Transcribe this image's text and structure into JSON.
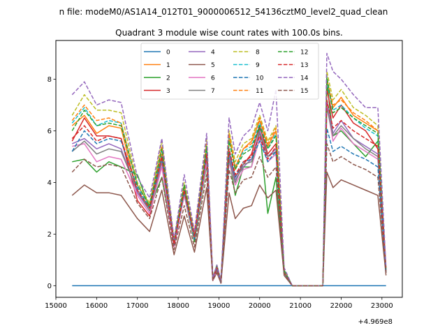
{
  "chart_data": {
    "type": "line",
    "suptitle": "n file: modeM0/AS1A14_012T01_9000006512_54136cztM0_level2_quad_clean",
    "title": "Quadrant 3 module wise count rates with 100.0s bins.",
    "xlabel": "",
    "ylabel": "",
    "x_offset_text": "+4.969e8",
    "xlim": [
      15000,
      23500
    ],
    "ylim": [
      -0.45,
      9.5
    ],
    "xticks": [
      15000,
      16000,
      17000,
      18000,
      19000,
      20000,
      21000,
      22000,
      23000
    ],
    "yticks": [
      0,
      2,
      4,
      6,
      8
    ],
    "grid": false,
    "legend_position": "top-center",
    "legend_columns": 4,
    "key_x": [
      15400,
      15700,
      16000,
      16300,
      16600,
      17000,
      17300,
      17600,
      17900,
      18150,
      18400,
      18700,
      18850,
      18950,
      19050,
      19250,
      19400,
      19600,
      19800,
      20000,
      20200,
      20400,
      20600,
      20800,
      21000,
      21550,
      21650,
      21800,
      22000,
      22300,
      22600,
      22900,
      23100
    ],
    "series": [
      {
        "name": "0",
        "color": "#1f77b4",
        "dash": "solid",
        "values": [
          0,
          0,
          0,
          0,
          0,
          0,
          0,
          0,
          0,
          0,
          0,
          0,
          0,
          0,
          0,
          0,
          0,
          0,
          0,
          0,
          0,
          0,
          0,
          0,
          0,
          0,
          0,
          0,
          0,
          0,
          0,
          0,
          0
        ]
      },
      {
        "name": "1",
        "color": "#ff7f0e",
        "dash": "solid",
        "values": [
          6.2,
          6.6,
          5.9,
          6.2,
          6.1,
          3.6,
          3.0,
          5.1,
          1.5,
          3.8,
          1.8,
          5.3,
          0.3,
          0.7,
          0.2,
          5.9,
          4.5,
          5.3,
          5.6,
          6.4,
          5.4,
          6.0,
          0.6,
          0,
          0,
          0,
          7.8,
          6.9,
          7.3,
          6.6,
          6.3,
          6.0,
          0.6
        ]
      },
      {
        "name": "2",
        "color": "#2ca02c",
        "dash": "solid",
        "values": [
          4.8,
          4.9,
          4.4,
          4.8,
          4.6,
          4.3,
          3.0,
          4.2,
          1.7,
          3.5,
          1.7,
          4.7,
          0.3,
          0.6,
          0.1,
          5.0,
          3.5,
          4.6,
          4.6,
          6.1,
          2.8,
          4.2,
          0.5,
          0,
          0,
          0,
          7.9,
          5.8,
          6.0,
          5.5,
          5.0,
          5.6,
          0.5
        ]
      },
      {
        "name": "3",
        "color": "#d62728",
        "dash": "solid",
        "values": [
          5.6,
          6.5,
          5.8,
          5.8,
          5.7,
          3.3,
          2.7,
          4.8,
          1.5,
          3.6,
          1.8,
          5.0,
          0.2,
          0.7,
          0.1,
          5.2,
          4.2,
          4.7,
          5.1,
          6.2,
          5.1,
          5.5,
          0.6,
          0,
          0,
          0,
          7.6,
          6.5,
          7.0,
          6.3,
          6.0,
          5.3,
          0.6
        ]
      },
      {
        "name": "4",
        "color": "#9467bd",
        "dash": "solid",
        "values": [
          5.5,
          5.7,
          5.3,
          5.5,
          5.3,
          3.6,
          2.9,
          4.8,
          1.6,
          3.7,
          1.9,
          5.0,
          0.3,
          0.7,
          0.1,
          5.0,
          4.1,
          4.6,
          4.9,
          6.0,
          5.0,
          5.3,
          0.5,
          0,
          0,
          0,
          7.2,
          5.9,
          6.4,
          5.7,
          5.4,
          5.1,
          0.6
        ]
      },
      {
        "name": "5",
        "color": "#8c564b",
        "dash": "solid",
        "values": [
          3.5,
          3.9,
          3.6,
          3.6,
          3.5,
          2.6,
          2.1,
          3.7,
          1.2,
          2.7,
          1.3,
          3.8,
          0.2,
          0.5,
          0.1,
          3.6,
          2.6,
          3.0,
          3.1,
          3.9,
          3.4,
          3.7,
          0.4,
          0,
          0,
          0,
          4.4,
          3.8,
          4.1,
          3.9,
          3.7,
          3.5,
          0.4
        ]
      },
      {
        "name": "6",
        "color": "#e377c2",
        "dash": "solid",
        "values": [
          5.4,
          5.5,
          4.8,
          5.0,
          4.9,
          3.5,
          2.8,
          4.6,
          1.5,
          3.5,
          1.8,
          4.8,
          0.2,
          0.6,
          0.1,
          4.8,
          3.9,
          4.5,
          4.6,
          5.7,
          4.8,
          5.1,
          0.5,
          0,
          0,
          0,
          7.0,
          5.6,
          6.1,
          5.5,
          5.2,
          4.9,
          0.5
        ]
      },
      {
        "name": "7",
        "color": "#7f7f7f",
        "dash": "solid",
        "values": [
          5.2,
          5.6,
          5.1,
          5.3,
          5.2,
          3.7,
          2.9,
          4.9,
          1.6,
          3.6,
          1.9,
          5.1,
          0.3,
          0.7,
          0.1,
          4.9,
          4.0,
          4.7,
          4.8,
          5.9,
          5.0,
          5.2,
          0.5,
          0,
          0,
          0,
          6.9,
          5.8,
          6.2,
          5.7,
          5.3,
          5.0,
          0.5
        ]
      },
      {
        "name": "8",
        "color": "#bcbd22",
        "dash": "dashed",
        "values": [
          6.6,
          7.4,
          6.8,
          6.8,
          6.7,
          4.0,
          3.2,
          5.6,
          1.8,
          4.0,
          2.0,
          5.7,
          0.3,
          0.8,
          0.2,
          6.0,
          4.8,
          5.5,
          5.7,
          6.6,
          5.6,
          6.2,
          0.6,
          0,
          0,
          0,
          8.3,
          7.2,
          7.6,
          6.9,
          6.6,
          6.2,
          0.6
        ]
      },
      {
        "name": "9",
        "color": "#17becf",
        "dash": "dashed",
        "values": [
          6.3,
          6.9,
          6.2,
          6.4,
          6.3,
          3.9,
          3.1,
          5.3,
          1.7,
          3.9,
          1.9,
          5.4,
          0.3,
          0.8,
          0.2,
          5.7,
          4.6,
          5.2,
          5.4,
          6.3,
          5.3,
          5.9,
          0.6,
          0,
          0,
          0,
          7.9,
          6.8,
          7.0,
          6.5,
          6.1,
          5.8,
          0.6
        ]
      },
      {
        "name": "10",
        "color": "#1f77b4",
        "dash": "dashed",
        "values": [
          5.2,
          6.0,
          5.5,
          5.7,
          5.6,
          3.8,
          3.0,
          5.0,
          1.6,
          3.7,
          1.8,
          5.1,
          0.3,
          0.7,
          0.1,
          5.2,
          4.2,
          4.8,
          4.9,
          5.6,
          4.8,
          5.2,
          0.5,
          0,
          0,
          0,
          6.1,
          5.2,
          5.4,
          5.1,
          4.9,
          4.6,
          0.5
        ]
      },
      {
        "name": "11",
        "color": "#ff7f0e",
        "dash": "dashed",
        "values": [
          6.4,
          7.0,
          6.4,
          6.5,
          6.3,
          3.9,
          3.1,
          5.4,
          1.7,
          3.9,
          2.0,
          5.5,
          0.3,
          0.8,
          0.2,
          5.8,
          4.6,
          5.3,
          5.5,
          6.5,
          5.5,
          6.1,
          0.6,
          0,
          0,
          0,
          8.0,
          7.0,
          7.2,
          6.7,
          6.4,
          6.0,
          0.6
        ]
      },
      {
        "name": "12",
        "color": "#2ca02c",
        "dash": "dashed",
        "values": [
          6.0,
          6.8,
          6.2,
          6.3,
          6.2,
          3.9,
          3.1,
          5.3,
          1.7,
          3.9,
          1.9,
          5.4,
          0.3,
          0.8,
          0.2,
          5.6,
          4.5,
          5.1,
          5.3,
          6.2,
          5.3,
          5.8,
          0.6,
          0,
          0,
          0,
          8.1,
          6.7,
          6.9,
          6.5,
          6.2,
          5.9,
          0.6
        ]
      },
      {
        "name": "13",
        "color": "#d62728",
        "dash": "dashed",
        "values": [
          5.7,
          6.2,
          5.6,
          5.8,
          5.7,
          3.7,
          3.0,
          5.0,
          1.6,
          3.7,
          1.9,
          5.1,
          0.3,
          0.7,
          0.1,
          5.3,
          4.3,
          4.8,
          5.0,
          5.8,
          4.9,
          5.4,
          0.5,
          0,
          0,
          0,
          7.2,
          6.1,
          6.4,
          6.0,
          5.7,
          5.4,
          0.6
        ]
      },
      {
        "name": "14",
        "color": "#9467bd",
        "dash": "dashed",
        "values": [
          7.4,
          7.9,
          7.0,
          7.2,
          7.1,
          4.2,
          3.4,
          5.7,
          1.8,
          4.3,
          2.1,
          5.9,
          0.3,
          0.8,
          0.2,
          6.5,
          5.1,
          5.8,
          6.1,
          7.1,
          6.0,
          7.6,
          0.7,
          0,
          0,
          0,
          9.0,
          8.3,
          8.0,
          7.4,
          6.9,
          6.9,
          0.7
        ]
      },
      {
        "name": "15",
        "color": "#8c564b",
        "dash": "dashed",
        "values": [
          4.4,
          4.9,
          4.6,
          4.7,
          4.6,
          3.2,
          2.6,
          4.2,
          1.4,
          3.1,
          1.5,
          4.3,
          0.2,
          0.6,
          0.1,
          4.5,
          3.6,
          4.1,
          4.2,
          5.0,
          4.2,
          4.6,
          0.5,
          0,
          0,
          0,
          5.5,
          4.8,
          5.0,
          4.7,
          4.5,
          4.2,
          0.5
        ]
      }
    ]
  }
}
